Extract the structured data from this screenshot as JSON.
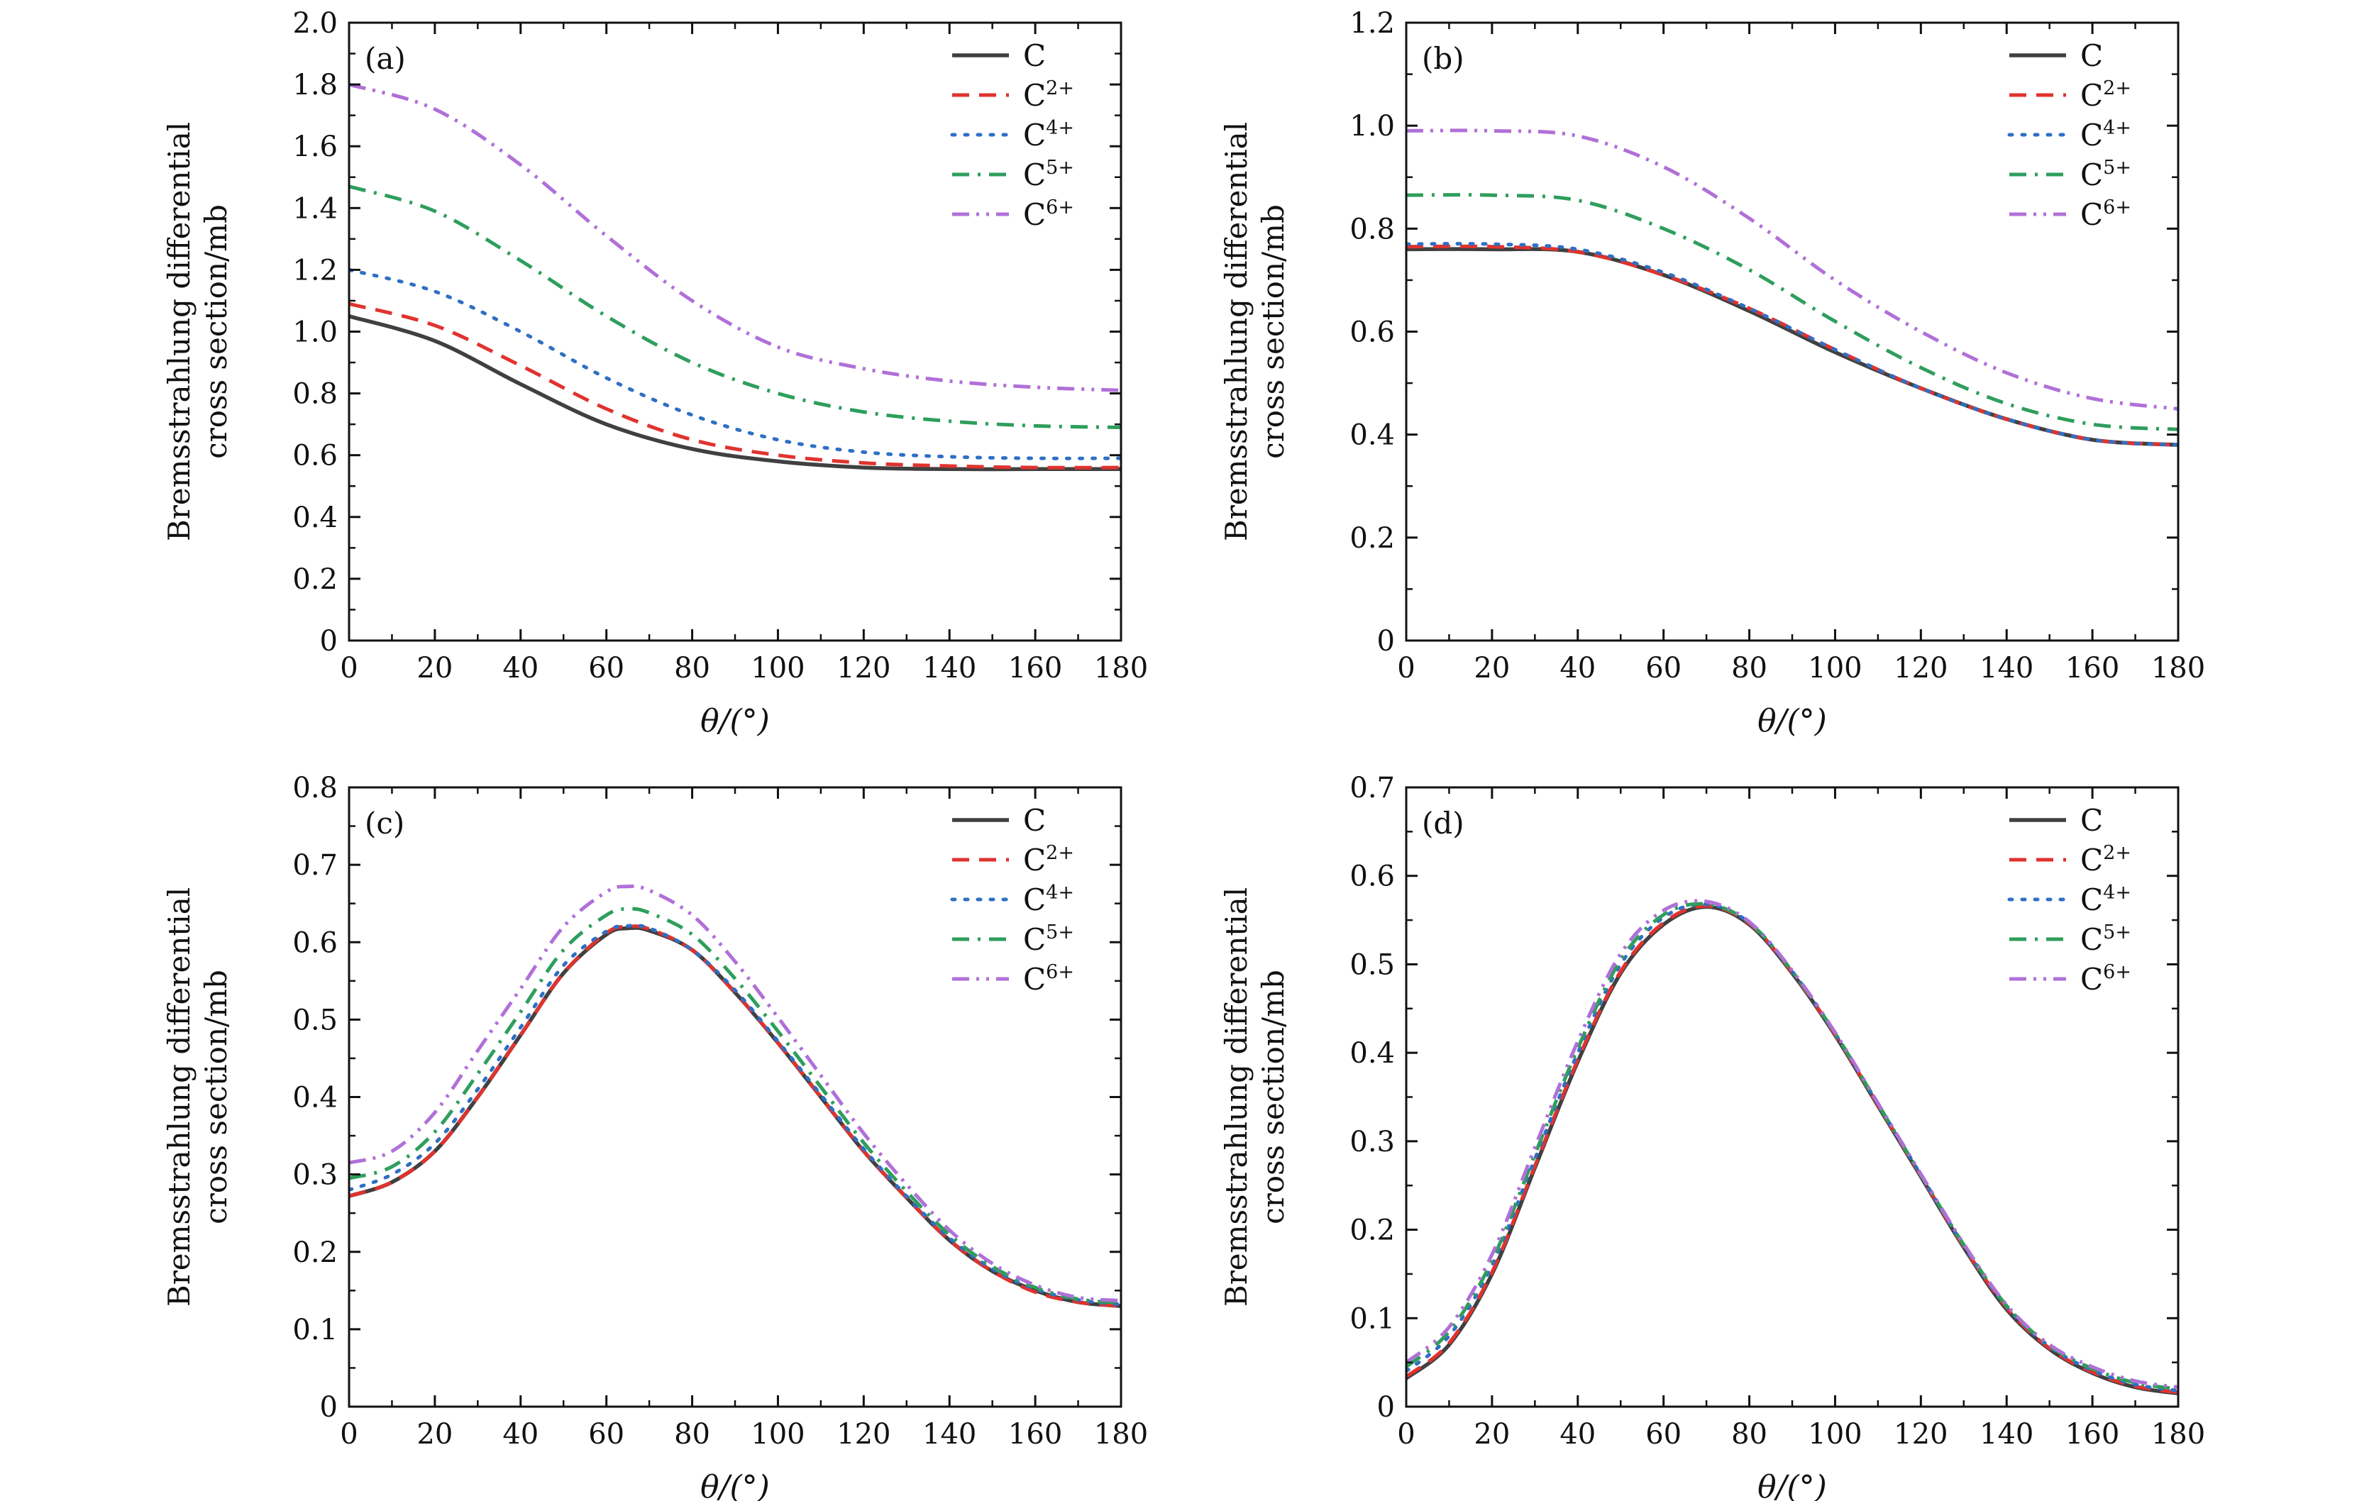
{
  "figure": {
    "ylabel_line1": "Bremsstrahlung differential",
    "ylabel_line2": "cross section/mb",
    "xlabel": "θ/(°)"
  },
  "legend": [
    {
      "base": "C",
      "sup": "",
      "color": "#404040",
      "dash": "solid"
    },
    {
      "base": "C",
      "sup": "2+",
      "color": "#e0332f",
      "dash": "dash"
    },
    {
      "base": "C",
      "sup": "4+",
      "color": "#2f6fc4",
      "dash": "dot"
    },
    {
      "base": "C",
      "sup": "5+",
      "color": "#2e9e5c",
      "dash": "dashdot"
    },
    {
      "base": "C",
      "sup": "6+",
      "color": "#b070d8",
      "dash": "dashdotdot"
    }
  ],
  "chart_data": [
    {
      "panel": "(a)",
      "type": "line",
      "xlabel": "θ/(°)",
      "ylabel": "Bremsstrahlung differential cross section/mb",
      "xlim": [
        0,
        180
      ],
      "ylim": [
        0,
        2.0
      ],
      "xticks": [
        0,
        20,
        40,
        60,
        80,
        100,
        120,
        140,
        160,
        180
      ],
      "yticks": [
        0,
        0.2,
        0.4,
        0.6,
        0.8,
        1.0,
        1.2,
        1.4,
        1.6,
        1.8,
        2.0
      ],
      "ytick_labels": [
        "0",
        "0.2",
        "0.4",
        "0.6",
        "0.8",
        "1.0",
        "1.2",
        "1.4",
        "1.6",
        "1.8",
        "2.0"
      ],
      "x": [
        0,
        20,
        40,
        60,
        80,
        100,
        120,
        140,
        160,
        180
      ],
      "series": [
        {
          "name": "C",
          "values": [
            1.05,
            0.97,
            0.83,
            0.7,
            0.62,
            0.58,
            0.56,
            0.555,
            0.555,
            0.555
          ]
        },
        {
          "name": "C2+",
          "values": [
            1.09,
            1.02,
            0.89,
            0.75,
            0.65,
            0.6,
            0.575,
            0.565,
            0.56,
            0.56
          ]
        },
        {
          "name": "C4+",
          "values": [
            1.2,
            1.13,
            1.0,
            0.85,
            0.73,
            0.65,
            0.61,
            0.595,
            0.59,
            0.59
          ]
        },
        {
          "name": "C5+",
          "values": [
            1.47,
            1.39,
            1.23,
            1.05,
            0.9,
            0.8,
            0.74,
            0.71,
            0.695,
            0.69
          ]
        },
        {
          "name": "C6+",
          "values": [
            1.8,
            1.72,
            1.54,
            1.31,
            1.1,
            0.95,
            0.88,
            0.84,
            0.82,
            0.81
          ]
        }
      ]
    },
    {
      "panel": "(b)",
      "type": "line",
      "xlabel": "θ/(°)",
      "ylabel": "Bremsstrahlung differential cross section/mb",
      "xlim": [
        0,
        180
      ],
      "ylim": [
        0,
        1.2
      ],
      "xticks": [
        0,
        20,
        40,
        60,
        80,
        100,
        120,
        140,
        160,
        180
      ],
      "yticks": [
        0,
        0.2,
        0.4,
        0.6,
        0.8,
        1.0,
        1.2
      ],
      "ytick_labels": [
        "0",
        "0.2",
        "0.4",
        "0.6",
        "0.8",
        "1.0",
        "1.2"
      ],
      "x": [
        0,
        20,
        40,
        60,
        80,
        100,
        120,
        140,
        160,
        180
      ],
      "series": [
        {
          "name": "C",
          "values": [
            0.76,
            0.76,
            0.755,
            0.71,
            0.64,
            0.56,
            0.49,
            0.43,
            0.39,
            0.38
          ]
        },
        {
          "name": "C2+",
          "values": [
            0.765,
            0.765,
            0.755,
            0.71,
            0.645,
            0.565,
            0.49,
            0.43,
            0.39,
            0.38
          ]
        },
        {
          "name": "C4+",
          "values": [
            0.77,
            0.77,
            0.76,
            0.715,
            0.645,
            0.565,
            0.49,
            0.43,
            0.39,
            0.38
          ]
        },
        {
          "name": "C5+",
          "values": [
            0.865,
            0.865,
            0.855,
            0.8,
            0.72,
            0.62,
            0.53,
            0.46,
            0.42,
            0.41
          ]
        },
        {
          "name": "C6+",
          "values": [
            0.99,
            0.99,
            0.98,
            0.92,
            0.82,
            0.7,
            0.6,
            0.52,
            0.47,
            0.45
          ]
        }
      ]
    },
    {
      "panel": "(c)",
      "type": "line",
      "xlabel": "θ/(°)",
      "ylabel": "Bremsstrahlung differential cross section/mb",
      "xlim": [
        0,
        180
      ],
      "ylim": [
        0,
        0.8
      ],
      "xticks": [
        0,
        20,
        40,
        60,
        80,
        100,
        120,
        140,
        160,
        180
      ],
      "yticks": [
        0,
        0.1,
        0.2,
        0.3,
        0.4,
        0.5,
        0.6,
        0.7,
        0.8
      ],
      "ytick_labels": [
        "0",
        "0.1",
        "0.2",
        "0.3",
        "0.4",
        "0.5",
        "0.6",
        "0.7",
        "0.8"
      ],
      "x": [
        0,
        10,
        20,
        30,
        40,
        50,
        60,
        65,
        70,
        80,
        90,
        100,
        110,
        120,
        130,
        140,
        150,
        160,
        170,
        180
      ],
      "series": [
        {
          "name": "C",
          "values": [
            0.272,
            0.29,
            0.33,
            0.4,
            0.48,
            0.56,
            0.61,
            0.618,
            0.615,
            0.59,
            0.535,
            0.47,
            0.4,
            0.33,
            0.27,
            0.215,
            0.175,
            0.15,
            0.135,
            0.13
          ]
        },
        {
          "name": "C2+",
          "values": [
            0.272,
            0.29,
            0.33,
            0.4,
            0.48,
            0.56,
            0.612,
            0.62,
            0.617,
            0.59,
            0.535,
            0.47,
            0.4,
            0.33,
            0.27,
            0.215,
            0.175,
            0.148,
            0.135,
            0.13
          ]
        },
        {
          "name": "C4+",
          "values": [
            0.28,
            0.3,
            0.34,
            0.41,
            0.49,
            0.57,
            0.614,
            0.621,
            0.618,
            0.59,
            0.538,
            0.472,
            0.403,
            0.333,
            0.272,
            0.218,
            0.178,
            0.152,
            0.138,
            0.132
          ]
        },
        {
          "name": "C5+",
          "values": [
            0.295,
            0.31,
            0.355,
            0.43,
            0.51,
            0.59,
            0.635,
            0.643,
            0.638,
            0.61,
            0.553,
            0.485,
            0.413,
            0.341,
            0.278,
            0.222,
            0.181,
            0.154,
            0.139,
            0.134
          ]
        },
        {
          "name": "C6+",
          "values": [
            0.315,
            0.33,
            0.38,
            0.46,
            0.54,
            0.62,
            0.665,
            0.672,
            0.667,
            0.635,
            0.575,
            0.503,
            0.428,
            0.353,
            0.287,
            0.228,
            0.185,
            0.157,
            0.141,
            0.137
          ]
        }
      ]
    },
    {
      "panel": "(d)",
      "type": "line",
      "xlabel": "θ/(°)",
      "ylabel": "Bremsstrahlung differential cross section/mb",
      "xlim": [
        0,
        180
      ],
      "ylim": [
        0,
        0.7
      ],
      "xticks": [
        0,
        20,
        40,
        60,
        80,
        100,
        120,
        140,
        160,
        180
      ],
      "yticks": [
        0,
        0.1,
        0.2,
        0.3,
        0.4,
        0.5,
        0.6,
        0.7
      ],
      "ytick_labels": [
        "0",
        "0.1",
        "0.2",
        "0.3",
        "0.4",
        "0.5",
        "0.6",
        "0.7"
      ],
      "x": [
        0,
        10,
        20,
        30,
        40,
        50,
        60,
        70,
        80,
        90,
        100,
        110,
        120,
        130,
        140,
        150,
        160,
        170,
        180
      ],
      "series": [
        {
          "name": "C",
          "values": [
            0.032,
            0.07,
            0.15,
            0.27,
            0.39,
            0.49,
            0.545,
            0.565,
            0.545,
            0.49,
            0.42,
            0.34,
            0.26,
            0.18,
            0.11,
            0.065,
            0.038,
            0.022,
            0.015
          ]
        },
        {
          "name": "C2+",
          "values": [
            0.034,
            0.072,
            0.152,
            0.272,
            0.392,
            0.492,
            0.547,
            0.566,
            0.546,
            0.491,
            0.421,
            0.341,
            0.261,
            0.181,
            0.112,
            0.066,
            0.039,
            0.023,
            0.016
          ]
        },
        {
          "name": "C4+",
          "values": [
            0.04,
            0.08,
            0.16,
            0.28,
            0.4,
            0.5,
            0.553,
            0.568,
            0.547,
            0.492,
            0.422,
            0.342,
            0.262,
            0.182,
            0.113,
            0.068,
            0.041,
            0.025,
            0.018
          ]
        },
        {
          "name": "C5+",
          "values": [
            0.045,
            0.085,
            0.165,
            0.285,
            0.405,
            0.505,
            0.556,
            0.568,
            0.547,
            0.492,
            0.422,
            0.342,
            0.262,
            0.183,
            0.114,
            0.069,
            0.043,
            0.027,
            0.02
          ]
        },
        {
          "name": "C6+",
          "values": [
            0.05,
            0.09,
            0.172,
            0.293,
            0.413,
            0.512,
            0.561,
            0.571,
            0.548,
            0.493,
            0.423,
            0.343,
            0.263,
            0.184,
            0.115,
            0.07,
            0.045,
            0.029,
            0.022
          ]
        }
      ]
    }
  ]
}
